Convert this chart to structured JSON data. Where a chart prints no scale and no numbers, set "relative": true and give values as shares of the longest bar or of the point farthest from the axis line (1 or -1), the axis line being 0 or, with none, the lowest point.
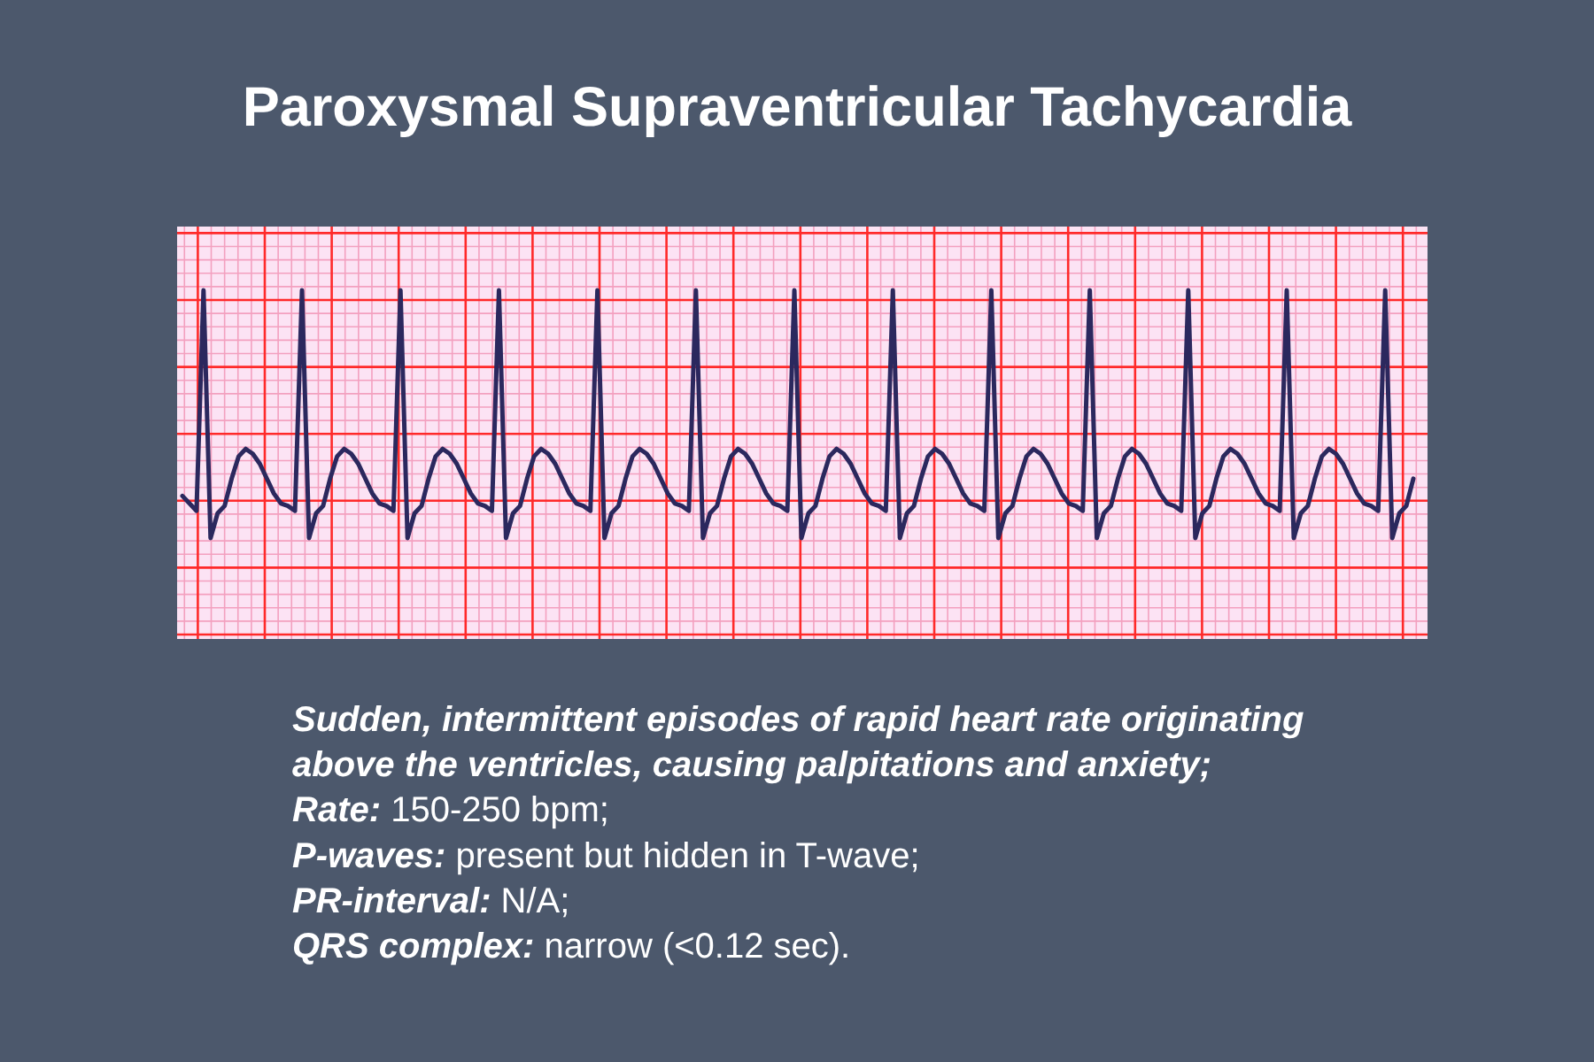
{
  "chart_data": {
    "type": "line",
    "title": "Paroxysmal Supraventricular Tachycardia",
    "relative": true,
    "grid": true,
    "color": "#2b285e",
    "categories": [
      null,
      null,
      null,
      null,
      null,
      null,
      null,
      null,
      null,
      null,
      null,
      null,
      null,
      null,
      null,
      null,
      null,
      null,
      null,
      null,
      null,
      null,
      null,
      null,
      null,
      null,
      null,
      null,
      null,
      null,
      null,
      null,
      null,
      null,
      null,
      null,
      null,
      null,
      null,
      null,
      null,
      null,
      null,
      null,
      null,
      null,
      null,
      null,
      null,
      null,
      null,
      null,
      null,
      null,
      null,
      null,
      null,
      null,
      null,
      null,
      null,
      null,
      null,
      null,
      null,
      null,
      null,
      null,
      null,
      null,
      null,
      null,
      null,
      null,
      null,
      null,
      null,
      null,
      null,
      null,
      null,
      null,
      null,
      null,
      null,
      null,
      null,
      null,
      null,
      null,
      null,
      null,
      null,
      null,
      null,
      null,
      null,
      null,
      null,
      null,
      null,
      null,
      null,
      null,
      null,
      null,
      null,
      null,
      null,
      null,
      null,
      null,
      null,
      null,
      null,
      null,
      null,
      null,
      null,
      null,
      null,
      null,
      null,
      null,
      null,
      null,
      null,
      null,
      null,
      null,
      null,
      null,
      null,
      null,
      null,
      null,
      null,
      null,
      null,
      null,
      null,
      null,
      null,
      null,
      null,
      null,
      null,
      null,
      null,
      null,
      null,
      null,
      null,
      null,
      null,
      null,
      null,
      null,
      null,
      null,
      null,
      null,
      null,
      null,
      null,
      null,
      null,
      null,
      null,
      null,
      null,
      null,
      null,
      null,
      null,
      null
    ],
    "values": [
      0.17,
      0.14,
      0.11,
      1,
      0,
      0.1,
      0.13,
      0.24,
      0.33,
      0.36,
      0.34,
      0.3,
      0.24,
      0.18,
      0.14,
      0.13,
      0.11,
      1,
      0,
      0.1,
      0.13,
      0.24,
      0.33,
      0.36,
      0.34,
      0.3,
      0.24,
      0.18,
      0.14,
      0.13,
      0.11,
      1,
      0,
      0.1,
      0.13,
      0.24,
      0.33,
      0.36,
      0.34,
      0.3,
      0.24,
      0.18,
      0.14,
      0.13,
      0.11,
      1,
      0,
      0.1,
      0.13,
      0.24,
      0.33,
      0.36,
      0.34,
      0.3,
      0.24,
      0.18,
      0.14,
      0.13,
      0.11,
      1,
      0,
      0.1,
      0.13,
      0.24,
      0.33,
      0.36,
      0.34,
      0.3,
      0.24,
      0.18,
      0.14,
      0.13,
      0.11,
      1,
      0,
      0.1,
      0.13,
      0.24,
      0.33,
      0.36,
      0.34,
      0.3,
      0.24,
      0.18,
      0.14,
      0.13,
      0.11,
      1,
      0,
      0.1,
      0.13,
      0.24,
      0.33,
      0.36,
      0.34,
      0.3,
      0.24,
      0.18,
      0.14,
      0.13,
      0.11,
      1,
      0,
      0.1,
      0.13,
      0.24,
      0.33,
      0.36,
      0.34,
      0.3,
      0.24,
      0.18,
      0.14,
      0.13,
      0.11,
      1,
      0,
      0.1,
      0.13,
      0.24,
      0.33,
      0.36,
      0.34,
      0.3,
      0.24,
      0.18,
      0.14,
      0.13,
      0.11,
      1,
      0,
      0.1,
      0.13,
      0.24,
      0.33,
      0.36,
      0.34,
      0.3,
      0.24,
      0.18,
      0.14,
      0.13,
      0.11,
      1,
      0,
      0.1,
      0.13,
      0.24,
      0.33,
      0.36,
      0.34,
      0.3,
      0.24,
      0.18,
      0.14,
      0.13,
      0.11,
      1,
      0,
      0.1,
      0.13,
      0.24,
      0.33,
      0.36,
      0.34,
      0.3,
      0.24,
      0.18,
      0.14,
      0.13,
      0.11,
      1,
      0,
      0.1,
      0.13,
      0.24
    ],
    "annotations": [
      "Sudden, intermittent episodes of rapid heart rate originating",
      "above the ventricles, causing palpitations and anxiety;",
      "Rate: 150-250 bpm;",
      "P-waves: present but hidden in T-wave;",
      "PR-interval: N/A;",
      "QRS complex: narrow (<0.12 sec)."
    ]
  }
}
